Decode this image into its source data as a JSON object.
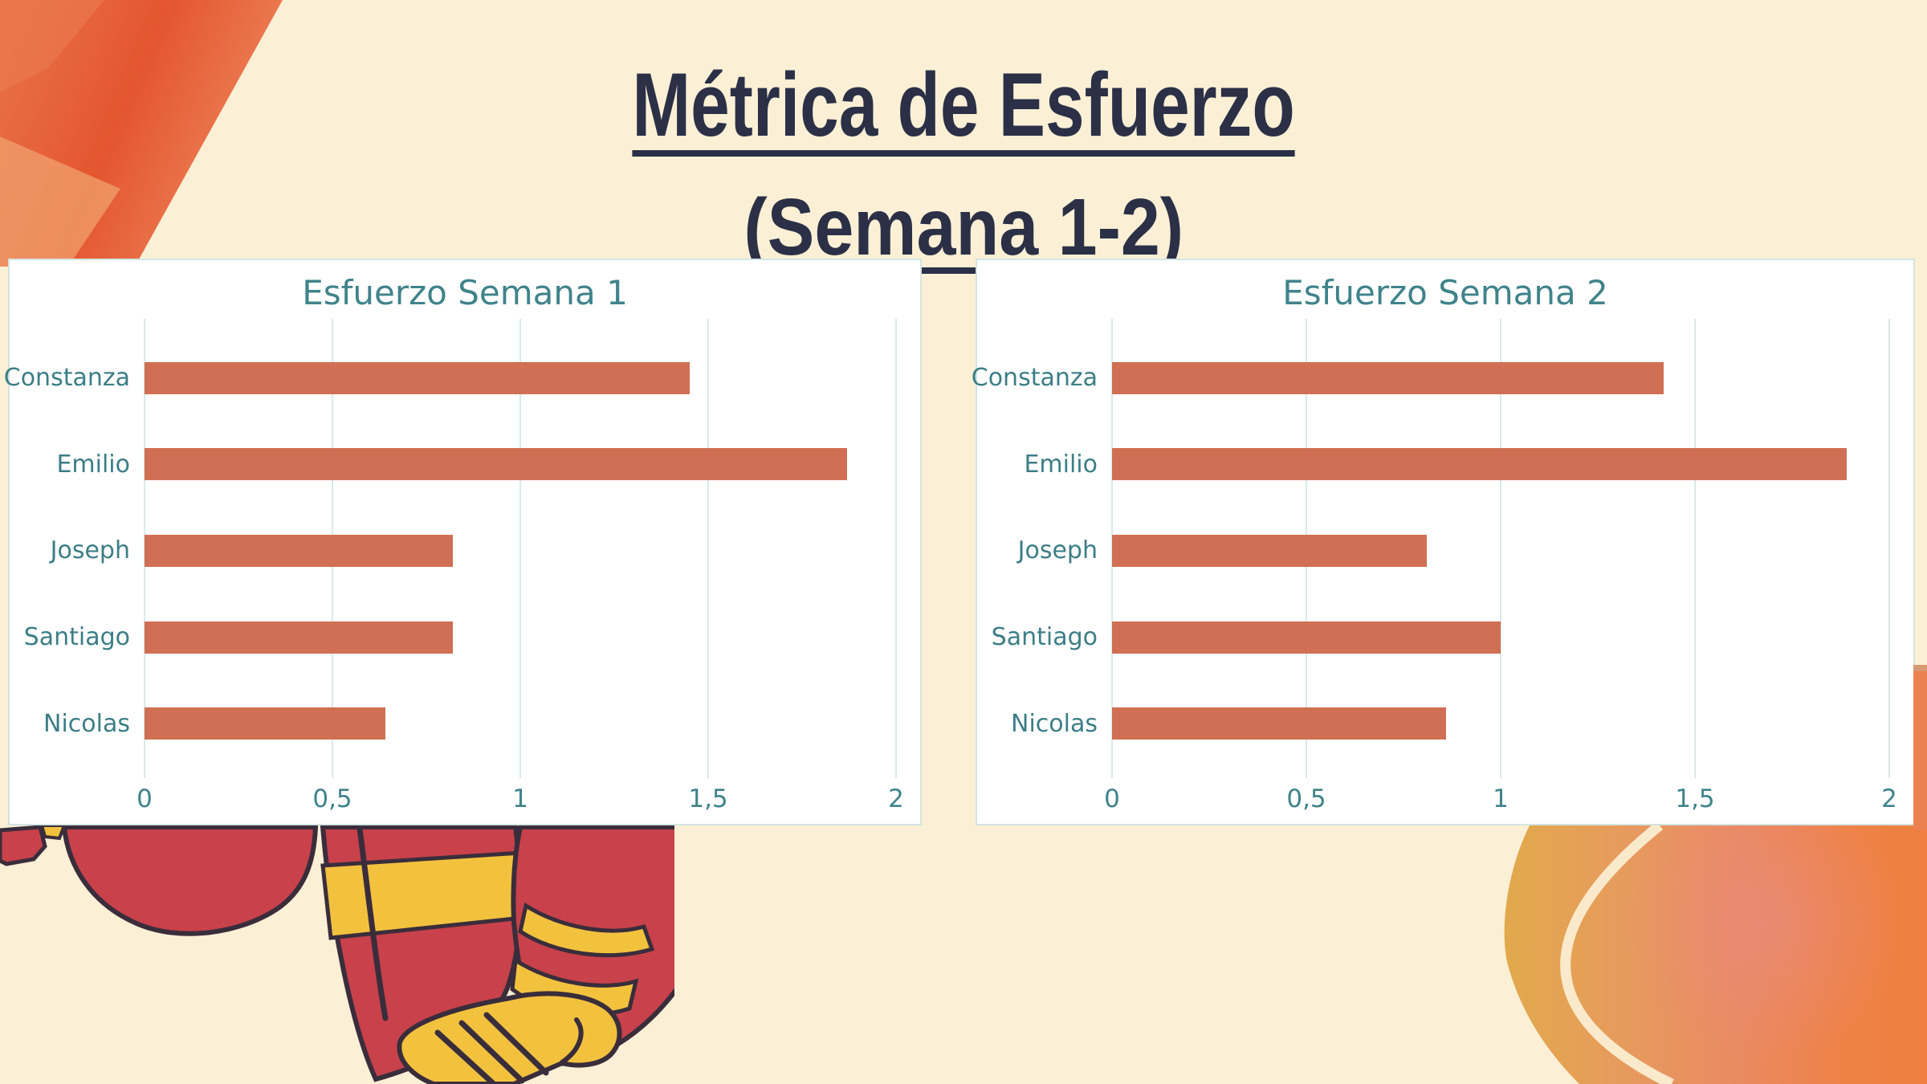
{
  "slide": {
    "title_line1": "Métrica de Esfuerzo",
    "title_line2": "(Semana 1-2)"
  },
  "chart_data": [
    {
      "type": "bar",
      "orientation": "horizontal",
      "title": "Esfuerzo Semana 1",
      "categories": [
        "Constanza",
        "Emilio",
        "Joseph",
        "Santiago",
        "Nicolas"
      ],
      "values": [
        1.45,
        1.87,
        0.82,
        0.82,
        0.64
      ],
      "xlim": [
        0,
        2
      ],
      "x_tick_values": [
        0,
        0.5,
        1,
        1.5,
        2
      ],
      "x_tick_labels": [
        "0",
        "0,5",
        "1",
        "1,5",
        "2"
      ],
      "grid": true,
      "legend": "none",
      "bar_color": "#d06f53"
    },
    {
      "type": "bar",
      "orientation": "horizontal",
      "title": "Esfuerzo Semana 2",
      "categories": [
        "Constanza",
        "Emilio",
        "Joseph",
        "Santiago",
        "Nicolas"
      ],
      "values": [
        1.42,
        1.89,
        0.81,
        1.0,
        0.86
      ],
      "xlim": [
        0,
        2
      ],
      "x_tick_values": [
        0,
        0.5,
        1,
        1.5,
        2
      ],
      "x_tick_labels": [
        "0",
        "0,5",
        "1",
        "1,5",
        "2"
      ],
      "grid": true,
      "legend": "none",
      "bar_color": "#d06f53"
    }
  ],
  "colors": {
    "background": "#fbf0d5",
    "title_text": "#2b3047",
    "chart_teal": "#40838b",
    "bar": "#d06f53",
    "gridline": "#d7eae9",
    "panel_border": "#d2e4e2",
    "panel_background": "#ffffff",
    "decor_orange_deep": "#e4562f",
    "decor_salmon": "#ee8a60",
    "decor_gold": "#e2a94d",
    "decor_cream_arc": "#fbeed2",
    "character_red": "#c8414b",
    "character_yellow": "#f2c23e",
    "character_outline": "#3a2d3b"
  },
  "decorations": {
    "top_left": "orange-gradient-wedge",
    "bottom_left": "cartoon-character-red-robe-yellow-hand",
    "bottom_right": "orange-gold-abstract-shape-with-cream-arc",
    "right_edge": "orange-strip"
  }
}
